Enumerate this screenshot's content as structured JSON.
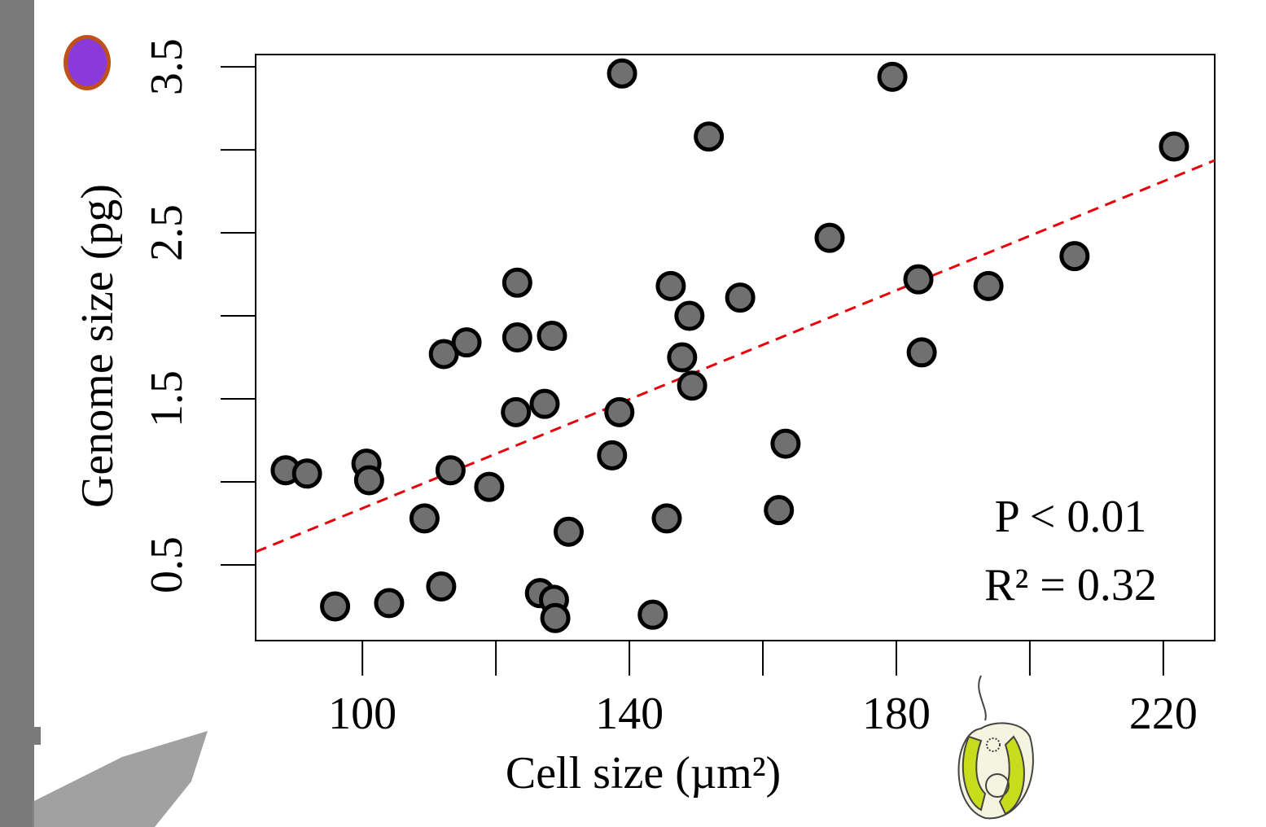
{
  "chart_data": {
    "type": "scatter",
    "x_label": "Cell size (µm²)",
    "y_label": "Genome size (pg)",
    "annotations": [
      "P < 0.01",
      "R² = 0.32"
    ],
    "xlim": [
      84,
      227.7
    ],
    "ylim": [
      0.044,
      3.574
    ],
    "xticks": [
      100,
      140,
      180,
      220
    ],
    "xminor_ticks": [
      120,
      160,
      200
    ],
    "yticks": [
      0.5,
      1.5,
      2.5,
      3.5
    ],
    "yminor_ticks": [
      1,
      2,
      3
    ],
    "point_color": "#707070",
    "edge_color": "#000000",
    "fit": {
      "slope": 0.01641,
      "intercept": -0.8,
      "color": "#e8000b",
      "style": "dashed"
    },
    "x": [
      88.5,
      91.7,
      95.9,
      100.6,
      101.0,
      104.0,
      109.3,
      111.8,
      112.2,
      113.2,
      115.6,
      119.0,
      123.2,
      123.2,
      123.0,
      126.6,
      127.3,
      128.4,
      128.7,
      128.9,
      130.9,
      137.4,
      138.5,
      138.9,
      143.5,
      145.6,
      146.2,
      147.9,
      149.0,
      149.4,
      151.9,
      156.6,
      162.4,
      163.4,
      170.0,
      179.4,
      183.3,
      183.8,
      193.8,
      206.7,
      221.6
    ],
    "values": [
      1.07,
      1.05,
      0.25,
      1.11,
      1.01,
      0.27,
      0.78,
      0.37,
      1.77,
      1.07,
      1.84,
      0.97,
      2.2,
      1.87,
      1.42,
      0.33,
      1.47,
      1.88,
      0.29,
      0.18,
      0.7,
      1.16,
      1.42,
      3.46,
      0.2,
      0.78,
      2.18,
      1.75,
      2.0,
      1.58,
      3.08,
      2.11,
      0.83,
      1.23,
      2.47,
      3.44,
      2.22,
      1.78,
      2.18,
      2.36,
      3.02
    ]
  }
}
